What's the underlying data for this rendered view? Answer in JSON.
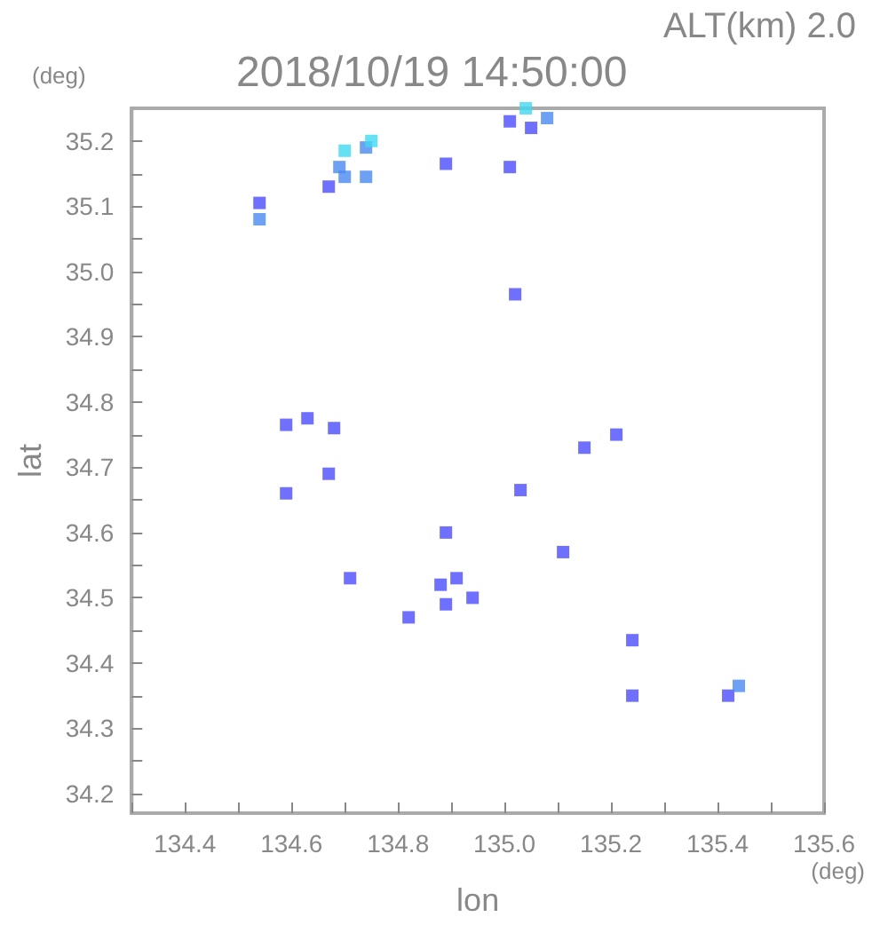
{
  "chart_data": {
    "type": "scatter",
    "title": "2018/10/19 14:50:00",
    "subtitle": "ALT(km) 2.0",
    "xlabel": "lon",
    "ylabel": "lat",
    "annotations": [
      "(deg)",
      "(deg)"
    ],
    "marker": "square",
    "xlim": [
      134.3,
      135.6
    ],
    "ylim": [
      34.17,
      35.25
    ],
    "xticks": [
      {
        "value": 134.3,
        "label": null
      },
      134.4,
      {
        "value": 134.5,
        "label": null
      },
      134.6,
      {
        "value": 134.7,
        "label": null
      },
      134.8,
      {
        "value": 134.9,
        "label": null
      },
      {
        "value": 135,
        "label": "135.0"
      },
      {
        "value": 135.1,
        "label": null
      },
      135.2,
      {
        "value": 135.3,
        "label": null
      },
      135.4,
      {
        "value": 135.5,
        "label": null
      },
      135.6
    ],
    "yticks": [
      34.2,
      {
        "value": 34.25,
        "label": null
      },
      34.3,
      {
        "value": 34.35,
        "label": null
      },
      34.4,
      {
        "value": 34.45,
        "label": null
      },
      34.5,
      {
        "value": 34.55,
        "label": null
      },
      34.6,
      {
        "value": 34.65,
        "label": null
      },
      34.7,
      {
        "value": 34.75,
        "label": null
      },
      34.8,
      {
        "value": 34.85,
        "label": null
      },
      34.9,
      {
        "value": 34.95,
        "label": null
      },
      {
        "value": 35,
        "label": "35.0"
      },
      {
        "value": 35.05,
        "label": null
      },
      35.1,
      {
        "value": 35.15,
        "label": null
      },
      35.2
    ],
    "x": [
      135.01,
      135.04,
      135.08,
      135.05,
      134.7,
      134.74,
      134.75,
      134.69,
      134.67,
      134.7,
      134.74,
      134.54,
      134.54,
      134.89,
      135.01,
      135.02,
      134.59,
      134.63,
      134.68,
      134.59,
      134.67,
      135.03,
      135.21,
      135.15,
      134.89,
      134.71,
      134.88,
      134.91,
      135.11,
      134.94,
      134.89,
      134.82,
      135.24,
      135.24,
      135.42,
      135.44
    ],
    "values": [
      35.23,
      35.25,
      35.235,
      35.22,
      35.185,
      35.19,
      35.2,
      35.16,
      35.13,
      35.145,
      35.145,
      35.105,
      35.08,
      35.165,
      35.16,
      34.965,
      34.765,
      34.775,
      34.76,
      34.66,
      34.69,
      34.665,
      34.75,
      34.73,
      34.6,
      34.53,
      34.52,
      34.53,
      34.57,
      34.5,
      34.49,
      34.47,
      34.435,
      34.35,
      34.35,
      34.365
    ],
    "colors": [
      "#4c4cff",
      "#40d8f0",
      "#4a8af0",
      "#4c4cff",
      "#40d8f0",
      "#4a8af0",
      "#40d8f0",
      "#4a8af0",
      "#4c4cff",
      "#4a8af0",
      "#4a8af0",
      "#4c4cff",
      "#4a8af0",
      "#4c4cff",
      "#4c4cff",
      "#4c4cff",
      "#4c4cff",
      "#4c4cff",
      "#4c4cff",
      "#4c4cff",
      "#4c4cff",
      "#4c4cff",
      "#4c4cff",
      "#4c4cff",
      "#4c4cff",
      "#4c4cff",
      "#4c4cff",
      "#4c4cff",
      "#4c4cff",
      "#4c4cff",
      "#4c4cff",
      "#4c4cff",
      "#4c4cff",
      "#4c4cff",
      "#4c4cff",
      "#4a8af0"
    ]
  }
}
